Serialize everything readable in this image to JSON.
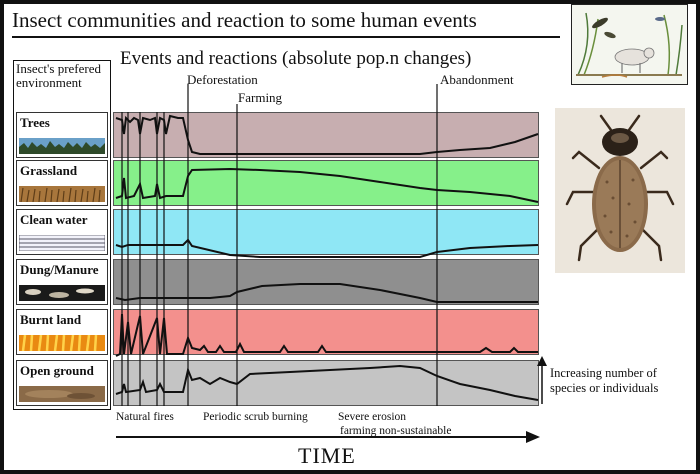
{
  "title": "Insect communities and reaction to some human events",
  "subtitle": "Events and reactions (absolute pop.n changes)",
  "environment_header": "Insect's prefered environment",
  "rows": [
    {
      "label": "Trees",
      "color": "#c7aeb0"
    },
    {
      "label": "Grassland",
      "color": "#86f08a"
    },
    {
      "label": "Clean water",
      "color": "#8fe7f5"
    },
    {
      "label": "Dung/Manure",
      "color": "#8f8f8f"
    },
    {
      "label": "Burnt land",
      "color": "#f3908d"
    },
    {
      "label": "Open ground",
      "color": "#c4c4c4"
    }
  ],
  "events_top": [
    "Deforestation",
    "Farming",
    "Abandonment"
  ],
  "events_bottom": [
    "Natural fires",
    "Periodic scrub burning",
    "Severe erosion",
    "farming non-sustainable"
  ],
  "time_label": "TIME",
  "increase_note": [
    "Increasing number of",
    "species or individuals"
  ]
}
